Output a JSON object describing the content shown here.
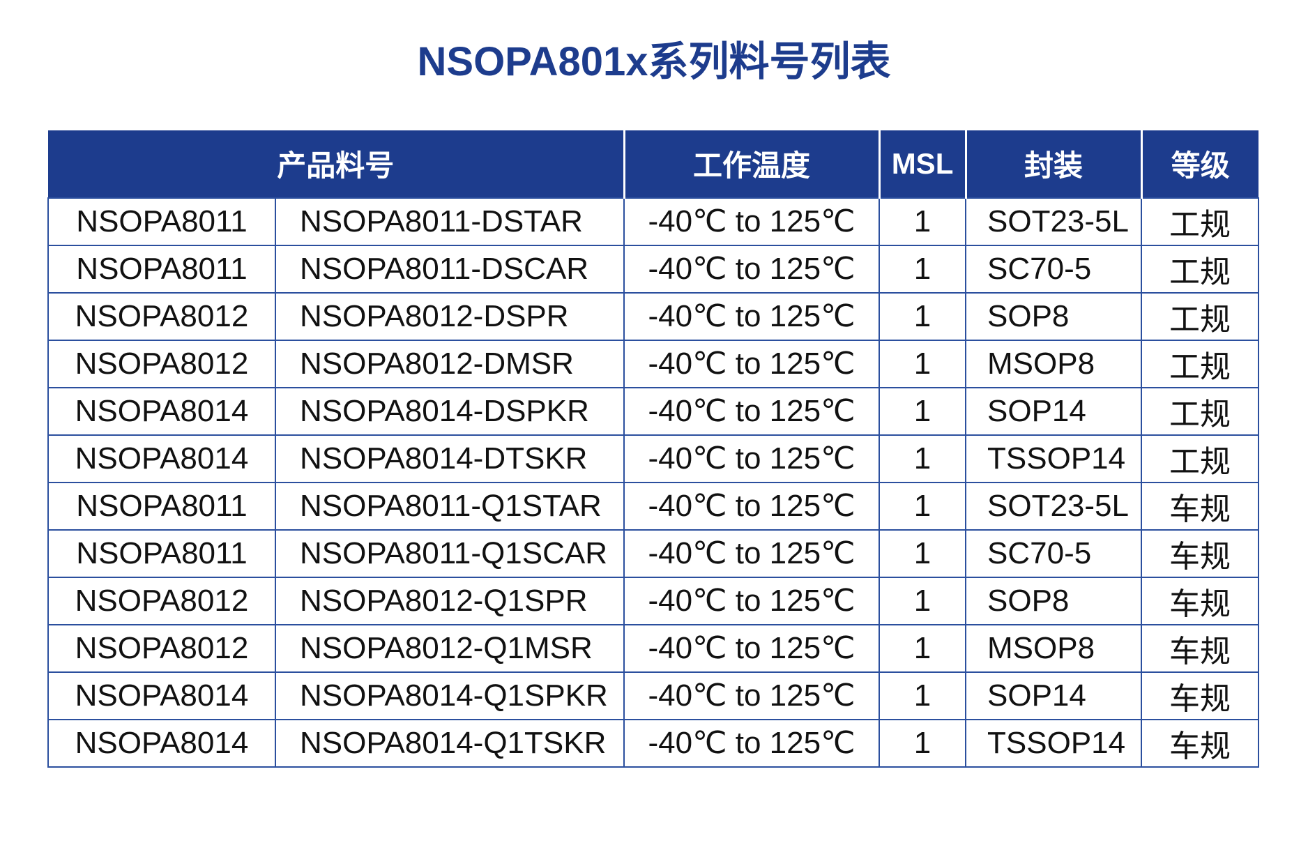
{
  "title": "NSOPA801x系列料号列表",
  "colors": {
    "navy": "#1D3C8D",
    "table_border": "#2B4F9E",
    "header_text": "#FFFFFF",
    "body_text": "#111111"
  },
  "table": {
    "headers": [
      {
        "label": "产品料号",
        "span": "2"
      },
      {
        "label": "工作温度",
        "span": "1"
      },
      {
        "label": "MSL",
        "span": "1"
      },
      {
        "label": "封装",
        "span": "1"
      },
      {
        "label": "等级",
        "span": "1"
      }
    ],
    "column_names": [
      "series",
      "part_number",
      "temp_range",
      "msl",
      "package",
      "grade"
    ],
    "rows": [
      [
        "NSOPA8011",
        "NSOPA8011-DSTAR",
        "-40℃ to 125℃",
        "1",
        "SOT23-5L",
        "工规"
      ],
      [
        "NSOPA8011",
        "NSOPA8011-DSCAR",
        "-40℃ to 125℃",
        "1",
        "SC70-5",
        "工规"
      ],
      [
        "NSOPA8012",
        "NSOPA8012-DSPR",
        "-40℃ to 125℃",
        "1",
        "SOP8",
        "工规"
      ],
      [
        "NSOPA8012",
        "NSOPA8012-DMSR",
        "-40℃ to 125℃",
        "1",
        "MSOP8",
        "工规"
      ],
      [
        "NSOPA8014",
        "NSOPA8014-DSPKR",
        "-40℃ to 125℃",
        "1",
        "SOP14",
        "工规"
      ],
      [
        "NSOPA8014",
        "NSOPA8014-DTSKR",
        "-40℃ to 125℃",
        "1",
        "TSSOP14",
        "工规"
      ],
      [
        "NSOPA8011",
        "NSOPA8011-Q1STAR",
        "-40℃ to 125℃",
        "1",
        "SOT23-5L",
        "车规"
      ],
      [
        "NSOPA8011",
        "NSOPA8011-Q1SCAR",
        "-40℃ to 125℃",
        "1",
        "SC70-5",
        "车规"
      ],
      [
        "NSOPA8012",
        "NSOPA8012-Q1SPR",
        "-40℃ to 125℃",
        "1",
        "SOP8",
        "车规"
      ],
      [
        "NSOPA8012",
        "NSOPA8012-Q1MSR",
        "-40℃ to 125℃",
        "1",
        "MSOP8",
        "车规"
      ],
      [
        "NSOPA8014",
        "NSOPA8014-Q1SPKR",
        "-40℃ to 125℃",
        "1",
        "SOP14",
        "车规"
      ],
      [
        "NSOPA8014",
        "NSOPA8014-Q1TSKR",
        "-40℃ to 125℃",
        "1",
        "TSSOP14",
        "车规"
      ]
    ]
  }
}
